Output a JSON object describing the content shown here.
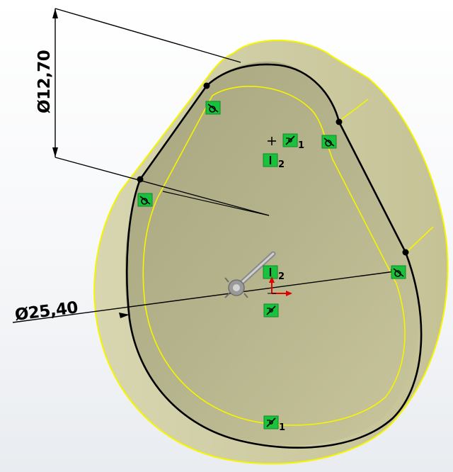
{
  "model_view": {
    "dimensions": {
      "small_diameter": "Ø12,70",
      "large_diameter": "Ø25,40"
    },
    "relations": {
      "tangent_label": "",
      "vertical_index": "2",
      "coincident_index": "1"
    },
    "colors": {
      "face_fill": "#c8c59a",
      "face_dark": "#b3af80",
      "edge_highlight": "#f5f500",
      "sketch_line": "#000000",
      "relation_badge": "#19c23c",
      "origin_red": "#e00000"
    },
    "icons": {
      "tangent": "tangent-relation-icon",
      "vertical": "vertical-relation-icon",
      "coincident": "coincident-relation-icon",
      "origin": "origin-icon",
      "rotate_handle": "rotate-handle-icon"
    }
  }
}
